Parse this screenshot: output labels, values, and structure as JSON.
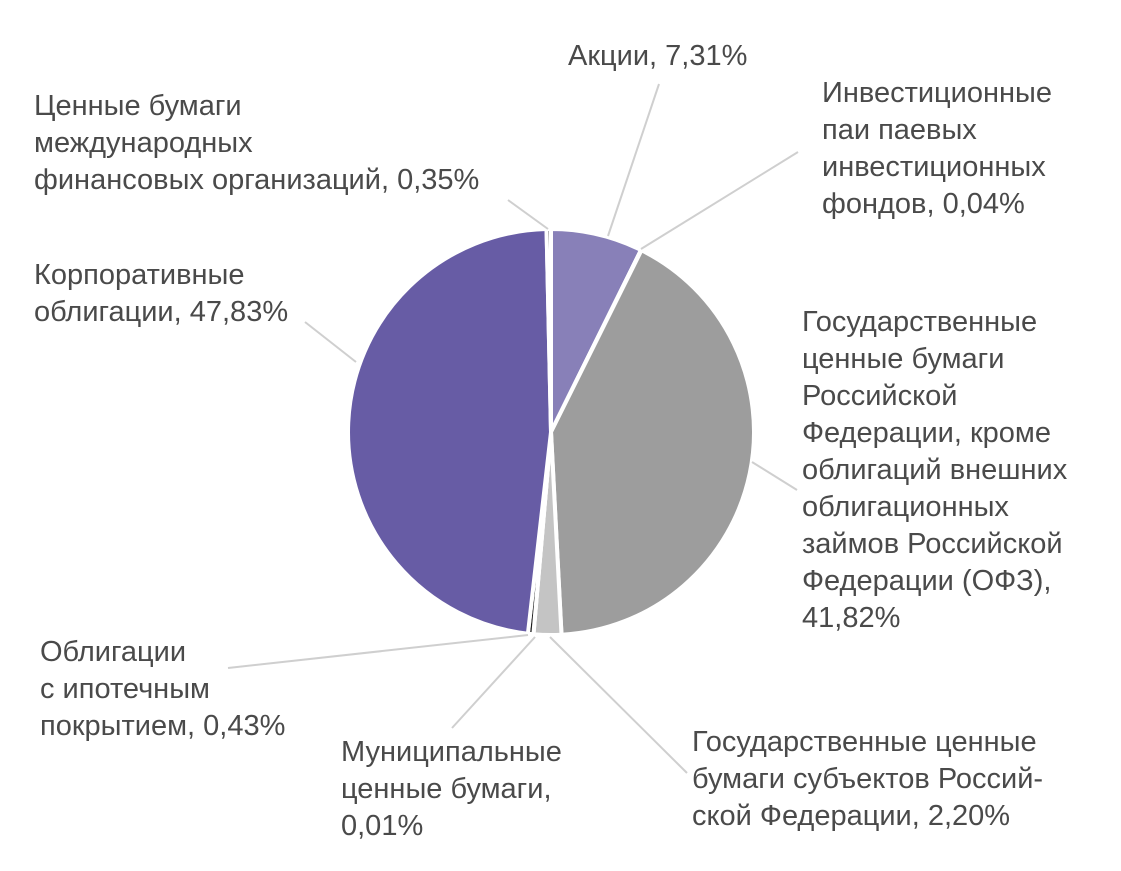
{
  "chart_data": {
    "type": "pie",
    "slices": [
      {
        "key": "shares",
        "label": "Акции",
        "value": 7.31,
        "display": "7,31%",
        "color": "#8880b8",
        "lines": [
          "Акции, 7,31%"
        ]
      },
      {
        "key": "funds",
        "label": "Инвестиционные паи паевых инвестиционных фондов",
        "value": 0.04,
        "display": "0,04%",
        "color": "#ffffff",
        "lines": [
          "Инвестиционные",
          "паи паевых",
          "инвестиционных",
          "фондов, 0,04%"
        ]
      },
      {
        "key": "ofz",
        "label": "Государственные ценные бумаги Российской Федерации, кроме облигаций внешних облигационных займов Российской Федерации (ОФЗ)",
        "value": 41.82,
        "display": "41,82%",
        "color": "#9d9d9d",
        "lines": [
          "Государственные",
          "ценные бумаги",
          "Российской",
          "Федерации, кроме",
          "облигаций внешних",
          "облигационных",
          "займов Российской",
          "Федерации (ОФЗ),",
          "41,82%"
        ]
      },
      {
        "key": "regional",
        "label": "Государственные ценные бумаги субъектов Российской Федерации",
        "value": 2.2,
        "display": "2,20%",
        "color": "#c4c4c4",
        "lines": [
          "Государственные ценные",
          "бумаги субъектов Россий-",
          "ской Федерации, 2,20%"
        ]
      },
      {
        "key": "municipal",
        "label": "Муниципальные ценные бумаги",
        "value": 0.01,
        "display": "0,01%",
        "color": "#dcdcdc",
        "lines": [
          "Муниципальные",
          "ценные бумаги,",
          "0,01%"
        ]
      },
      {
        "key": "mortgage",
        "label": "Облигации с ипотечным покрытием",
        "value": 0.43,
        "display": "0,43%",
        "color": "#1e1e1e",
        "lines": [
          "Облигации",
          "с ипотечным",
          "покрытием, 0,43%"
        ]
      },
      {
        "key": "corporate",
        "label": "Корпоративные облигации",
        "value": 47.83,
        "display": "47,83%",
        "color": "#675ca5",
        "lines": [
          "Корпоративные",
          "облигации, 47,83%"
        ]
      },
      {
        "key": "intl",
        "label": "Ценные бумаги международных финансовых организаций",
        "value": 0.35,
        "display": "0,35%",
        "color": "#474747",
        "lines": [
          "Ценные бумаги",
          "международных",
          "финансовых организаций, 0,35%"
        ]
      }
    ],
    "start_angle_deg": 0,
    "direction": "clockwise",
    "legend": "none",
    "leader_line_color": "#cfcfcf",
    "label_color": "#4a4a4a",
    "separator_color": "#ffffff"
  }
}
